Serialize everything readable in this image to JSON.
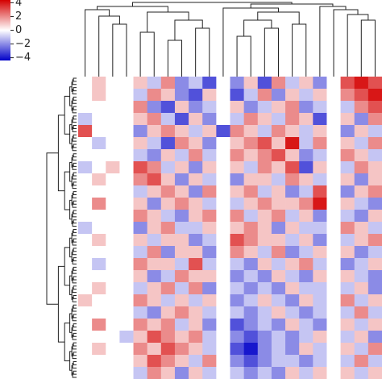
{
  "chart_data": {
    "type": "heatmap",
    "clim": [
      -4.4,
      4.4
    ],
    "cticks": [
      4,
      2,
      0,
      {
        "value": -2,
        "label": "−2"
      },
      {
        "value": -4,
        "label": "−4"
      }
    ],
    "colors": {
      "low": "#0000c8",
      "mid": "#ffffff",
      "high": "#d40000"
    },
    "values": [
      [
        0,
        1,
        0,
        0,
        1,
        -1,
        2,
        -2,
        -1,
        -3,
        0,
        -2,
        1,
        -3,
        2,
        -1,
        1,
        -2,
        0,
        3,
        4,
        3
      ],
      [
        0,
        1,
        0,
        0,
        -1,
        2,
        1,
        -2,
        -3,
        1,
        0,
        -3,
        -1,
        2,
        -2,
        1,
        -1,
        1,
        0,
        2,
        3,
        4
      ],
      [
        0,
        0,
        0,
        0,
        2,
        -2,
        -3,
        1,
        -2,
        -1,
        0,
        1,
        -2,
        -1,
        1,
        2,
        -2,
        -1,
        0,
        -1,
        2,
        3
      ],
      [
        -1,
        0,
        0,
        0,
        1,
        2,
        -1,
        -3,
        1,
        -2,
        0,
        -1,
        2,
        1,
        -1,
        2,
        1,
        -3,
        0,
        1,
        -2,
        2
      ],
      [
        3,
        0,
        0,
        0,
        -2,
        1,
        2,
        1,
        -1,
        1,
        -3,
        2,
        1,
        -1,
        2,
        1,
        -1,
        1,
        0,
        -2,
        1,
        -1
      ],
      [
        0,
        -1,
        0,
        0,
        1,
        -1,
        -3,
        2,
        1,
        -2,
        0,
        1,
        2,
        3,
        1,
        4,
        -1,
        2,
        0,
        1,
        -1,
        2
      ],
      [
        0,
        0,
        0,
        0,
        -1,
        -2,
        1,
        -1,
        2,
        -1,
        0,
        2,
        1,
        2,
        3,
        1,
        -2,
        -1,
        0,
        2,
        1,
        -1
      ],
      [
        -1,
        0,
        1,
        0,
        3,
        2,
        -1,
        1,
        -2,
        1,
        0,
        1,
        -1,
        2,
        1,
        3,
        -3,
        1,
        0,
        -1,
        2,
        1
      ],
      [
        0,
        1,
        0,
        0,
        2,
        3,
        1,
        -2,
        1,
        -1,
        0,
        -2,
        1,
        1,
        -1,
        2,
        1,
        -1,
        0,
        1,
        -2,
        1
      ],
      [
        0,
        0,
        0,
        0,
        -1,
        1,
        2,
        1,
        -2,
        2,
        0,
        1,
        2,
        -1,
        1,
        -2,
        -1,
        3,
        0,
        -2,
        1,
        2
      ],
      [
        0,
        2,
        0,
        0,
        1,
        -2,
        1,
        2,
        1,
        -1,
        0,
        -1,
        1,
        2,
        1,
        1,
        2,
        4,
        0,
        1,
        -1,
        -2
      ],
      [
        0,
        0,
        0,
        0,
        2,
        1,
        -1,
        -2,
        1,
        2,
        0,
        2,
        -1,
        1,
        2,
        -1,
        1,
        -2,
        0,
        -1,
        -2,
        1
      ],
      [
        -1,
        0,
        0,
        0,
        -2,
        1,
        2,
        -1,
        -1,
        1,
        0,
        1,
        2,
        1,
        -2,
        1,
        -1,
        -1,
        0,
        2,
        1,
        -1
      ],
      [
        0,
        1,
        0,
        0,
        1,
        -1,
        1,
        1,
        -2,
        -1,
        0,
        3,
        2,
        1,
        1,
        -1,
        1,
        -2,
        0,
        -1,
        1,
        2
      ],
      [
        0,
        0,
        0,
        0,
        -1,
        2,
        -2,
        1,
        1,
        -2,
        0,
        2,
        1,
        -1,
        2,
        -2,
        -1,
        1,
        0,
        1,
        -2,
        -1
      ],
      [
        0,
        -1,
        0,
        0,
        2,
        1,
        1,
        -1,
        3,
        -1,
        0,
        -1,
        -2,
        1,
        -1,
        1,
        2,
        -1,
        0,
        -2,
        -1,
        1
      ],
      [
        0,
        0,
        0,
        0,
        1,
        -2,
        -1,
        2,
        1,
        1,
        0,
        -2,
        -1,
        -2,
        1,
        -1,
        -2,
        1,
        0,
        1,
        -1,
        -2
      ],
      [
        0,
        1,
        0,
        0,
        -1,
        1,
        2,
        -1,
        2,
        -2,
        0,
        -1,
        -2,
        -1,
        -2,
        1,
        -1,
        -1,
        0,
        -1,
        1,
        -2
      ],
      [
        1,
        0,
        0,
        0,
        2,
        1,
        -1,
        1,
        -1,
        1,
        0,
        -2,
        -1,
        1,
        -1,
        -2,
        1,
        -1,
        0,
        2,
        -1,
        1
      ],
      [
        0,
        0,
        0,
        0,
        -1,
        -2,
        1,
        2,
        1,
        -1,
        0,
        -1,
        -2,
        -1,
        1,
        -1,
        -2,
        -1,
        0,
        -1,
        2,
        -1
      ],
      [
        0,
        2,
        0,
        0,
        2,
        1,
        2,
        -1,
        1,
        -2,
        0,
        -3,
        -2,
        -1,
        -2,
        1,
        -1,
        -2,
        0,
        1,
        -1,
        1
      ],
      [
        0,
        0,
        0,
        -1,
        1,
        3,
        2,
        1,
        2,
        -1,
        0,
        -2,
        -3,
        -2,
        -1,
        -2,
        -1,
        1,
        0,
        -1,
        1,
        -2
      ],
      [
        0,
        1,
        0,
        0,
        2,
        1,
        3,
        2,
        1,
        -1,
        0,
        -3,
        -4,
        -2,
        -1,
        -2,
        1,
        -1,
        0,
        1,
        -1,
        2
      ],
      [
        0,
        0,
        0,
        0,
        1,
        3,
        2,
        1,
        -1,
        2,
        0,
        -2,
        -3,
        -2,
        -1,
        -1,
        -2,
        -1,
        0,
        -1,
        2,
        -1
      ],
      [
        0,
        0,
        0,
        0,
        -1,
        2,
        1,
        -2,
        1,
        -1,
        0,
        -1,
        -2,
        -1,
        -2,
        1,
        -1,
        1,
        0,
        1,
        -1,
        1
      ]
    ]
  }
}
